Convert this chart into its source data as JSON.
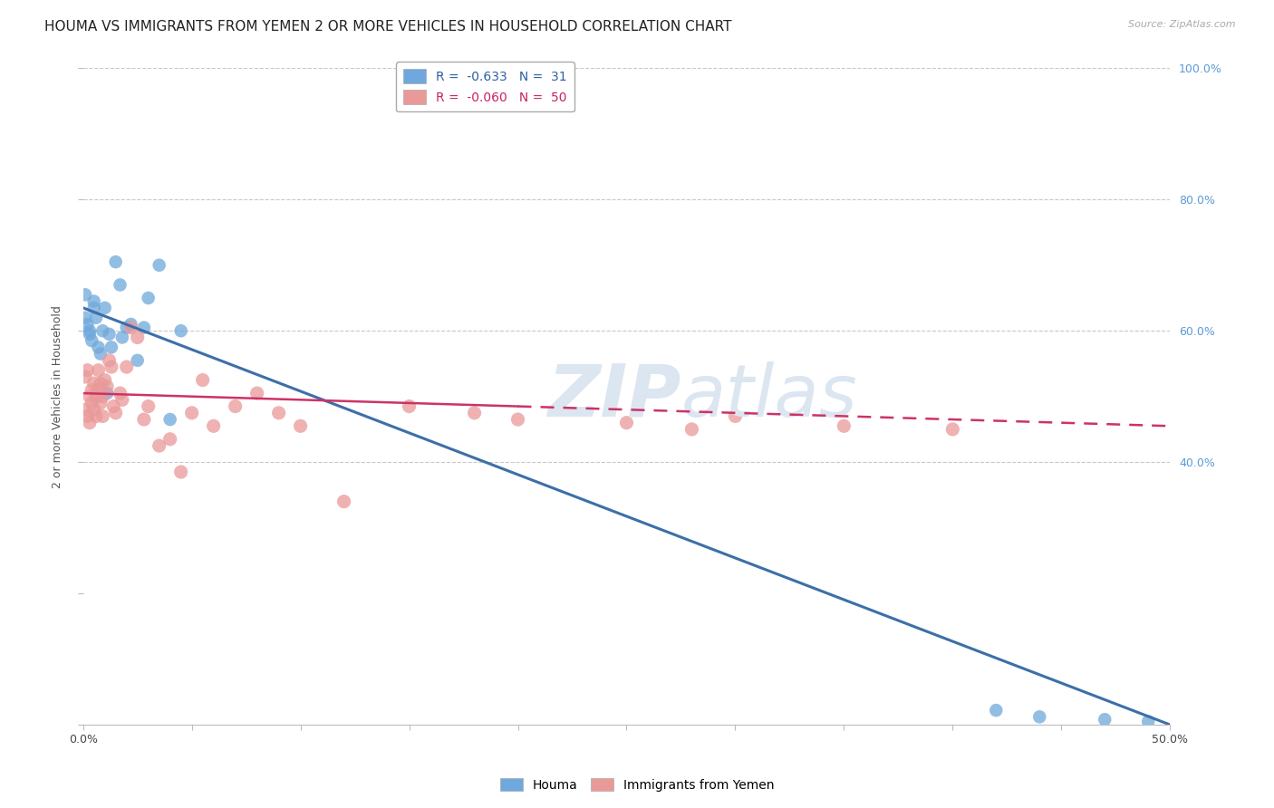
{
  "title": "HOUMA VS IMMIGRANTS FROM YEMEN 2 OR MORE VEHICLES IN HOUSEHOLD CORRELATION CHART",
  "source": "Source: ZipAtlas.com",
  "ylabel": "2 or more Vehicles in Household",
  "xlim": [
    0.0,
    0.5
  ],
  "ylim": [
    0.0,
    1.0
  ],
  "houma_color": "#6fa8dc",
  "yemen_color": "#ea9999",
  "houma_line_color": "#3d6fa8",
  "yemen_line_color": "#cc3366",
  "background_color": "#ffffff",
  "grid_color": "#c8c8c8",
  "watermark_color": "#dce6f1",
  "title_fontsize": 11,
  "axis_label_fontsize": 9,
  "tick_fontsize": 9,
  "legend_fontsize": 10,
  "houma_x": [
    0.001,
    0.001,
    0.002,
    0.003,
    0.003,
    0.004,
    0.005,
    0.005,
    0.006,
    0.007,
    0.008,
    0.009,
    0.01,
    0.011,
    0.012,
    0.013,
    0.015,
    0.017,
    0.018,
    0.02,
    0.022,
    0.025,
    0.028,
    0.03,
    0.035,
    0.04,
    0.045,
    0.42,
    0.44,
    0.47,
    0.49
  ],
  "houma_y": [
    0.62,
    0.655,
    0.61,
    0.6,
    0.595,
    0.585,
    0.645,
    0.635,
    0.62,
    0.575,
    0.565,
    0.6,
    0.635,
    0.505,
    0.595,
    0.575,
    0.705,
    0.67,
    0.59,
    0.605,
    0.61,
    0.555,
    0.605,
    0.65,
    0.7,
    0.465,
    0.6,
    0.022,
    0.012,
    0.008,
    0.005
  ],
  "yemen_x": [
    0.001,
    0.001,
    0.002,
    0.002,
    0.003,
    0.003,
    0.004,
    0.004,
    0.005,
    0.005,
    0.006,
    0.006,
    0.007,
    0.007,
    0.008,
    0.008,
    0.009,
    0.009,
    0.01,
    0.011,
    0.012,
    0.013,
    0.014,
    0.015,
    0.017,
    0.018,
    0.02,
    0.022,
    0.025,
    0.028,
    0.03,
    0.035,
    0.04,
    0.045,
    0.05,
    0.055,
    0.06,
    0.07,
    0.08,
    0.09,
    0.1,
    0.12,
    0.15,
    0.18,
    0.2,
    0.25,
    0.28,
    0.3,
    0.35,
    0.4
  ],
  "yemen_y": [
    0.53,
    0.48,
    0.54,
    0.47,
    0.5,
    0.46,
    0.51,
    0.49,
    0.52,
    0.48,
    0.5,
    0.47,
    0.54,
    0.51,
    0.49,
    0.52,
    0.5,
    0.47,
    0.525,
    0.515,
    0.555,
    0.545,
    0.485,
    0.475,
    0.505,
    0.495,
    0.545,
    0.605,
    0.59,
    0.465,
    0.485,
    0.425,
    0.435,
    0.385,
    0.475,
    0.525,
    0.455,
    0.485,
    0.505,
    0.475,
    0.455,
    0.34,
    0.485,
    0.475,
    0.465,
    0.46,
    0.45,
    0.47,
    0.455,
    0.45
  ],
  "houma_line_x": [
    0.0,
    0.5
  ],
  "houma_line_y": [
    0.635,
    0.0
  ],
  "yemen_line_x": [
    0.0,
    0.5
  ],
  "yemen_line_y": [
    0.505,
    0.455
  ]
}
